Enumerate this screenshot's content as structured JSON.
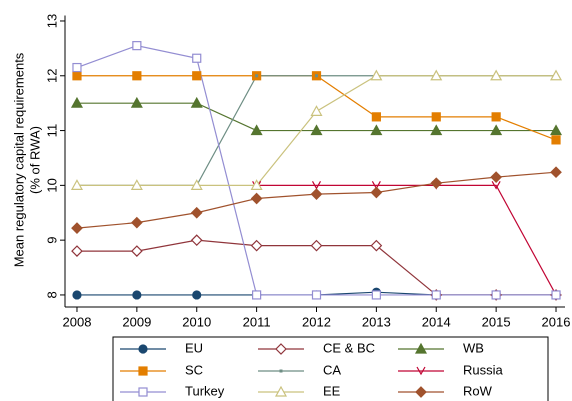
{
  "chart_data": {
    "type": "line",
    "y_label": [
      "Mean regulatory capital requirements",
      "(% of RWA)"
    ],
    "x": [
      2008,
      2009,
      2010,
      2011,
      2012,
      2013,
      2014,
      2015,
      2016
    ],
    "xlim": [
      2007.8,
      2016.15
    ],
    "xticks": [
      2008,
      2009,
      2010,
      2011,
      2012,
      2013,
      2014,
      2015,
      2016
    ],
    "ylim": [
      7.78,
      13.1
    ],
    "yticks": [
      8,
      9,
      10,
      11,
      12,
      13
    ],
    "series": [
      {
        "name": "EU",
        "color": "#1a476f",
        "marker": "circle-filled",
        "values": [
          8,
          8,
          8,
          8,
          8,
          8.05,
          8,
          8,
          8
        ]
      },
      {
        "name": "CE & BC",
        "color": "#90353b",
        "marker": "diamond-hollow",
        "values": [
          8.8,
          8.8,
          9.0,
          8.9,
          8.9,
          8.9,
          8.0,
          8.0,
          8.0
        ]
      },
      {
        "name": "WB",
        "color": "#55752f",
        "marker": "triangle-filled",
        "values": [
          11.5,
          11.5,
          11.5,
          11,
          11,
          11,
          11,
          11,
          11
        ]
      },
      {
        "name": "SC",
        "color": "#e37e00",
        "marker": "square-filled",
        "values": [
          12,
          12,
          12,
          12,
          12,
          11.25,
          11.25,
          11.25,
          10.83
        ]
      },
      {
        "name": "CA",
        "color": "#6e8e84",
        "marker": "point",
        "values": [
          10,
          10,
          10,
          12,
          12,
          12,
          12,
          12,
          12
        ]
      },
      {
        "name": "Russia",
        "color": "#c10534",
        "marker": "vee",
        "values": [
          null,
          null,
          null,
          10,
          10,
          10,
          10,
          10,
          8
        ]
      },
      {
        "name": "Turkey",
        "color": "#938dd2",
        "marker": "square-hollow",
        "values": [
          12.15,
          12.55,
          12.32,
          8,
          8,
          8,
          8,
          8,
          8
        ]
      },
      {
        "name": "EE",
        "color": "#cac27e",
        "marker": "triangle-hollow",
        "values": [
          10,
          10,
          10,
          10,
          11.35,
          12,
          12,
          12,
          12
        ]
      },
      {
        "name": "RoW",
        "color": "#a0522d",
        "marker": "diamond-filled",
        "values": [
          9.22,
          9.32,
          9.5,
          9.76,
          9.84,
          9.87,
          10.04,
          10.15,
          10.24
        ]
      }
    ]
  }
}
